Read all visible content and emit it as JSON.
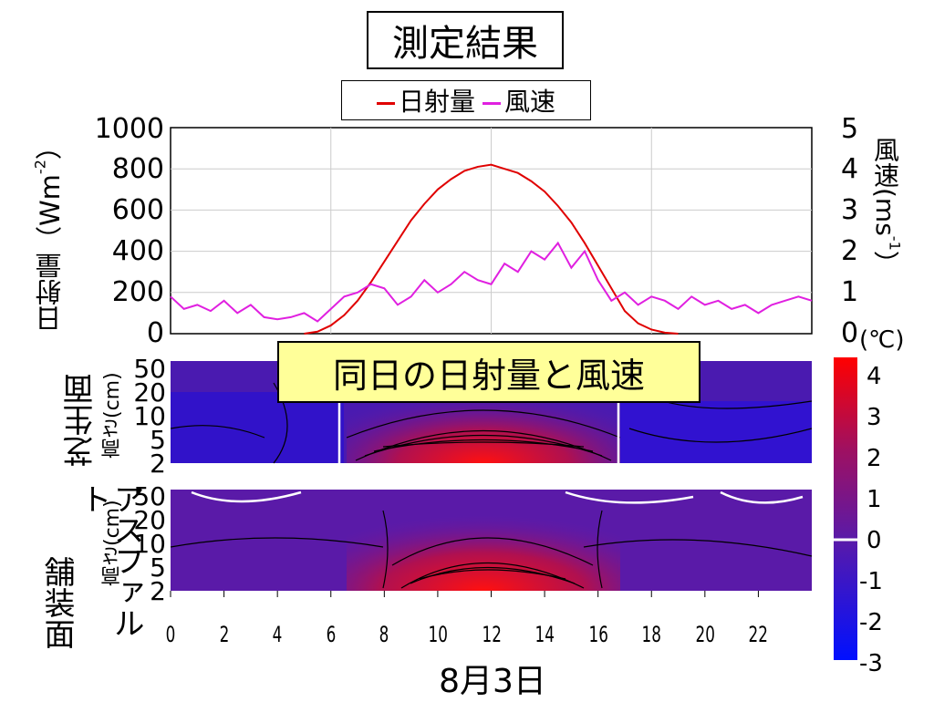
{
  "title": "測定結果",
  "subtitle": "同日の日射量と風速",
  "chart_data": [
    {
      "type": "line",
      "legend": {
        "position": "top",
        "entries": [
          "日射量",
          "風速"
        ]
      },
      "ylabel": "日射量（Wm⁻²）",
      "ylabel_parts": {
        "text": "日射量（Wm",
        "sup": "-2",
        "close": "）"
      },
      "y2label": "風速(ms⁻¹)",
      "y2label_parts": {
        "text": "風速(ms",
        "sup": "-1",
        "close": "）"
      },
      "ylim": [
        0,
        1000
      ],
      "y2lim": [
        0,
        5
      ],
      "yticks": [
        "1000",
        "800",
        "600",
        "400",
        "200",
        "0"
      ],
      "y2ticks": [
        "5",
        "4",
        "3",
        "2",
        "1",
        "0"
      ],
      "xlim": [
        0,
        24
      ],
      "grid": true,
      "series": [
        {
          "name": "日射量",
          "color": "#e00000",
          "axis": "left",
          "x": [
            5,
            5.5,
            6,
            6.5,
            7,
            7.5,
            8,
            8.5,
            9,
            9.5,
            10,
            10.5,
            11,
            11.5,
            12,
            12.5,
            13,
            13.5,
            14,
            14.5,
            15,
            15.5,
            16,
            16.5,
            17,
            17.5,
            18,
            18.5,
            19
          ],
          "y": [
            0,
            10,
            40,
            90,
            160,
            250,
            350,
            450,
            550,
            630,
            700,
            750,
            790,
            810,
            820,
            800,
            780,
            740,
            690,
            620,
            540,
            440,
            330,
            220,
            110,
            50,
            20,
            5,
            0
          ]
        },
        {
          "name": "風速",
          "color": "#e020e0",
          "axis": "right",
          "x": [
            0,
            0.5,
            1,
            1.5,
            2,
            2.5,
            3,
            3.5,
            4,
            4.5,
            5,
            5.5,
            6,
            6.5,
            7,
            7.5,
            8,
            8.5,
            9,
            9.5,
            10,
            10.5,
            11,
            11.5,
            12,
            12.5,
            13,
            13.5,
            14,
            14.5,
            15,
            15.5,
            16,
            16.5,
            17,
            17.5,
            18,
            18.5,
            19,
            19.5,
            20,
            20.5,
            21,
            21.5,
            22,
            22.5,
            23,
            23.5,
            24
          ],
          "y": [
            0.9,
            0.6,
            0.7,
            0.55,
            0.8,
            0.5,
            0.7,
            0.4,
            0.35,
            0.4,
            0.5,
            0.3,
            0.6,
            0.9,
            1.0,
            1.2,
            1.1,
            0.7,
            0.9,
            1.3,
            1.0,
            1.2,
            1.5,
            1.3,
            1.2,
            1.7,
            1.5,
            2.0,
            1.8,
            2.2,
            1.6,
            2.0,
            1.3,
            0.8,
            1.0,
            0.7,
            0.9,
            0.8,
            0.6,
            0.9,
            0.7,
            0.8,
            0.6,
            0.7,
            0.5,
            0.7,
            0.8,
            0.9,
            0.8
          ]
        }
      ]
    },
    {
      "type": "heatmap",
      "label": "芝生面",
      "ylabel": "高さ(cm)",
      "yticks": [
        "50",
        "20",
        "10",
        "5",
        "2"
      ]
    },
    {
      "type": "heatmap",
      "label": "アスファルト舗装面",
      "label_parts": [
        "アスファルト",
        "舗装面"
      ],
      "ylabel": "高さ(cm)",
      "yticks": [
        "50",
        "20",
        "10",
        "5",
        "2"
      ],
      "xticks": [
        "0",
        "2",
        "4",
        "6",
        "8",
        "10",
        "12",
        "14",
        "16",
        "18",
        "20",
        "22"
      ],
      "xlabel": "8月3日"
    },
    {
      "type": "colorbar",
      "unit": "(℃)",
      "ticks": [
        "4",
        "3",
        "2",
        "1",
        "0",
        "-1",
        "-2",
        "-3"
      ],
      "range": [
        -3,
        4.5
      ],
      "colors": {
        "low": "#0010ff",
        "mid": "#5a1aa8",
        "high": "#ff0000",
        "zero_line": "#ffffff"
      }
    }
  ]
}
